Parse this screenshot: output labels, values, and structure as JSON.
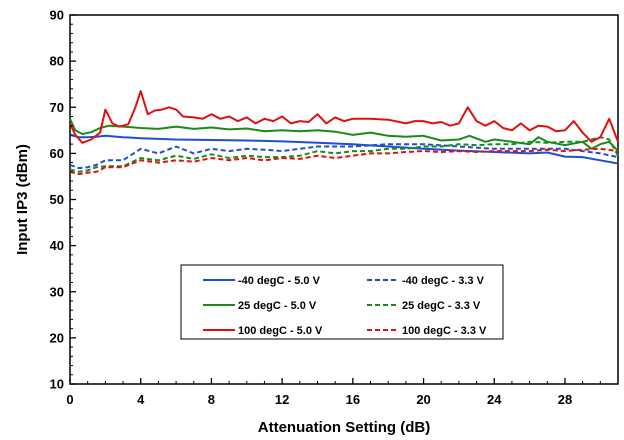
{
  "chart_data": {
    "type": "line",
    "title": "",
    "xlabel": "Attenuation Setting (dB)",
    "ylabel": "Input IP3 (dBm)",
    "xlim": [
      0,
      31
    ],
    "ylim": [
      10,
      90
    ],
    "xticks": [
      0,
      4,
      8,
      12,
      16,
      20,
      24,
      28
    ],
    "yticks": [
      10,
      20,
      30,
      40,
      50,
      60,
      70,
      80,
      90
    ],
    "grid": false,
    "legend_position": "center-bottom",
    "series": [
      {
        "name": "-40 degC - 5.0 V",
        "color": "#1f4fd0",
        "dash": "solid",
        "x": [
          0,
          0.5,
          1,
          1.5,
          2,
          3,
          4,
          6,
          8,
          10,
          12,
          14,
          16,
          18,
          20,
          22,
          24,
          26,
          27,
          28,
          29,
          30,
          31
        ],
        "y": [
          64,
          63.5,
          63.5,
          63.6,
          63.8,
          63.5,
          63.3,
          63,
          62.9,
          62.8,
          62.6,
          62.3,
          62,
          61.5,
          61,
          60.6,
          60.3,
          60,
          60.2,
          59.3,
          59.2,
          58.5,
          57.8
        ]
      },
      {
        "name": "-40 degC - 3.3 V",
        "color": "#1f4fd0",
        "dash": "dashed",
        "x": [
          0,
          0.5,
          1,
          1.5,
          2,
          3,
          4,
          5,
          6,
          7,
          8,
          9,
          10,
          11,
          12,
          13,
          14,
          15,
          16,
          18,
          20,
          22,
          24,
          26,
          28,
          30,
          31
        ],
        "y": [
          57.5,
          56.8,
          57,
          57.5,
          58.5,
          58.5,
          61,
          60,
          61.5,
          60,
          61,
          60.5,
          61,
          60.8,
          60.5,
          61,
          61.5,
          61.5,
          61.5,
          62,
          62,
          61.5,
          61,
          61,
          61,
          60,
          59.2
        ]
      },
      {
        "name": "25 degC - 5.0 V",
        "color": "#1a8a1a",
        "dash": "solid",
        "x": [
          0,
          0.3,
          0.7,
          1.2,
          1.7,
          2.2,
          3,
          4,
          5,
          6,
          7,
          8,
          9,
          10,
          11,
          12,
          13,
          14,
          15,
          16,
          17,
          18,
          19,
          20,
          21,
          22,
          22.6,
          23.5,
          24,
          25,
          26,
          26.5,
          27,
          28,
          29,
          29.5,
          30,
          30.5,
          31
        ],
        "y": [
          67.5,
          65,
          64.2,
          64.6,
          65.5,
          66,
          65.8,
          65.5,
          65.3,
          65.8,
          65.3,
          65.6,
          65.2,
          65.4,
          64.8,
          65,
          64.8,
          65,
          64.7,
          64,
          64.5,
          63.8,
          63.6,
          63.8,
          62.8,
          63,
          63.8,
          62.5,
          63,
          62.5,
          62,
          63.5,
          62.5,
          61.8,
          62.5,
          61,
          62,
          62.5,
          60.5
        ]
      },
      {
        "name": "25 degC - 3.3 V",
        "color": "#1a8a1a",
        "dash": "dashed",
        "x": [
          0,
          0.5,
          1,
          1.5,
          2,
          3,
          4,
          5,
          6,
          7,
          8,
          9,
          10,
          11,
          12,
          13,
          14,
          15,
          16,
          17,
          18,
          19,
          20,
          21,
          22,
          23,
          24,
          25,
          26,
          27,
          28,
          29,
          30,
          30.5,
          31
        ],
        "y": [
          56.5,
          56,
          56.3,
          57,
          57.2,
          57.2,
          59,
          58.5,
          59.5,
          58.8,
          59.8,
          59,
          59.5,
          59.2,
          59.2,
          59.5,
          60.5,
          60,
          60.5,
          60.5,
          61,
          61,
          61.5,
          61.5,
          62,
          61.8,
          62,
          62,
          62.5,
          62.3,
          62.5,
          62.5,
          63.5,
          63,
          59.5
        ]
      },
      {
        "name": "100 degC - 5.0 V",
        "color": "#e01010",
        "dash": "solid",
        "x": [
          0,
          0.3,
          0.7,
          1.2,
          1.7,
          2,
          2.4,
          2.8,
          3.3,
          3.7,
          4,
          4.4,
          4.8,
          5.2,
          5.6,
          6,
          6.4,
          7,
          7.5,
          8,
          8.5,
          9,
          9.5,
          10,
          10.5,
          11,
          11.5,
          12,
          12.5,
          13,
          13.5,
          14,
          14.5,
          15,
          15.5,
          16,
          17,
          18,
          19,
          19.5,
          20,
          20.5,
          21,
          21.5,
          22,
          22.5,
          23,
          23.5,
          24,
          24.5,
          25,
          25.5,
          26,
          26.5,
          27,
          27.5,
          28,
          28.5,
          29,
          29.5,
          30,
          30.5,
          31
        ],
        "y": [
          66.5,
          64,
          62.3,
          63,
          64.5,
          69.5,
          66.5,
          65.8,
          66.3,
          70,
          73.5,
          68.5,
          69.3,
          69.5,
          70,
          69.5,
          68,
          67.8,
          67.5,
          68.5,
          67.5,
          68,
          67,
          67.8,
          66.5,
          67.5,
          67,
          68,
          66.5,
          67,
          66.8,
          68.5,
          66.5,
          67.8,
          67,
          67.5,
          67.5,
          67.3,
          66.5,
          67,
          67,
          66.5,
          66.8,
          66,
          66.5,
          70,
          67,
          66,
          67,
          65.5,
          65,
          66.5,
          65,
          66,
          65.8,
          64.8,
          65,
          67,
          64.5,
          62.5,
          63.5,
          67.5,
          62.5
        ]
      },
      {
        "name": "100 degC - 3.3 V",
        "color": "#e01010",
        "dash": "dashed",
        "x": [
          0,
          0.5,
          1,
          1.5,
          2,
          3,
          4,
          5,
          6,
          7,
          8,
          9,
          10,
          11,
          12,
          13,
          14,
          15,
          16,
          17,
          18,
          19,
          20,
          21,
          22,
          23,
          24,
          25,
          26,
          27,
          28,
          29,
          30,
          31
        ],
        "y": [
          56,
          55.5,
          55.8,
          56,
          57,
          57,
          58.5,
          58,
          58.5,
          58.2,
          59,
          58.5,
          59,
          58.5,
          59,
          58.8,
          59.5,
          59,
          59.5,
          60,
          60,
          60.3,
          60.5,
          60.3,
          60.5,
          60.3,
          60.5,
          60.5,
          60.5,
          60.8,
          60.5,
          60.8,
          61,
          60.5
        ]
      }
    ]
  }
}
